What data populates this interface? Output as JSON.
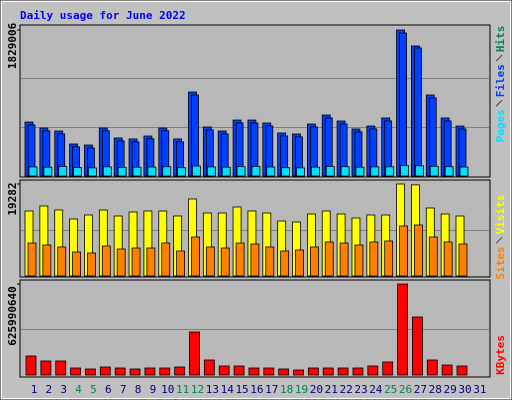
{
  "chart_data": [
    {
      "type": "bar",
      "title": "Daily usage for June 2022",
      "series": [
        {
          "name": "Hits",
          "color": "#00805c",
          "fill": "#0040ff",
          "values": [
            676000,
            601000,
            564000,
            401000,
            388000,
            601000,
            476000,
            464000,
            501000,
            601000,
            464000,
            1052000,
            614000,
            564000,
            701000,
            701000,
            664000,
            539000,
            526000,
            651000,
            764000,
            689000,
            589000,
            626000,
            727000,
            1829006,
            1629000,
            1015000,
            727000,
            626000,
            null
          ]
        },
        {
          "name": "Files",
          "color": "#0040ff",
          "values": [
            640000,
            566000,
            528000,
            366000,
            352000,
            566000,
            440000,
            428000,
            466000,
            566000,
            428000,
            1015000,
            578000,
            528000,
            665000,
            665000,
            628000,
            503000,
            490000,
            615000,
            728000,
            652000,
            552000,
            590000,
            690000,
            1791000,
            1604000,
            978000,
            690000,
            590000,
            null
          ]
        },
        {
          "name": "Pages",
          "color": "#00e0ff",
          "values": [
            113000,
            110000,
            118000,
            105000,
            102000,
            115000,
            108000,
            110000,
            112000,
            116000,
            104000,
            125000,
            114000,
            110000,
            117000,
            118000,
            112000,
            104000,
            102000,
            111000,
            118000,
            116000,
            110000,
            114000,
            115000,
            130000,
            128000,
            121000,
            116000,
            112000,
            null
          ]
        }
      ],
      "ylim": [
        0,
        1829006
      ],
      "yticks": [
        1829006
      ]
    },
    {
      "type": "bar",
      "series": [
        {
          "name": "Visits",
          "color": "#ffff00",
          "values": [
            13623,
            14671,
            13833,
            11946,
            12785,
            13833,
            12575,
            13414,
            13623,
            13623,
            12575,
            16138,
            13204,
            13204,
            14461,
            13623,
            13204,
            11527,
            11317,
            12994,
            13623,
            12994,
            12156,
            12785,
            12785,
            19282,
            19100,
            14252,
            12994,
            12575,
            null
          ]
        },
        {
          "name": "Sites",
          "color": "#ff8000",
          "values": [
            6916,
            6497,
            6078,
            5030,
            4820,
            6288,
            5659,
            5868,
            5868,
            6916,
            5240,
            8174,
            6078,
            5868,
            6916,
            6707,
            6078,
            5240,
            5449,
            6078,
            7126,
            6916,
            6497,
            7126,
            7335,
            10479,
            10689,
            8174,
            7126,
            6707,
            null
          ]
        }
      ],
      "ylim": [
        0,
        19282
      ],
      "yticks": [
        19282
      ]
    },
    {
      "type": "bar",
      "categories": [
        "1",
        "2",
        "3",
        "4",
        "5",
        "6",
        "7",
        "8",
        "9",
        "10",
        "11",
        "12",
        "13",
        "14",
        "15",
        "16",
        "17",
        "18",
        "19",
        "20",
        "21",
        "22",
        "23",
        "24",
        "25",
        "26",
        "27",
        "28",
        "29",
        "30",
        "31"
      ],
      "category_colors": [
        "#000080",
        "#000080",
        "#000080",
        "#00805c",
        "#00805c",
        "#000080",
        "#000080",
        "#000080",
        "#000080",
        "#000080",
        "#00805c",
        "#00805c",
        "#000080",
        "#000080",
        "#000080",
        "#000080",
        "#000080",
        "#00805c",
        "#00805c",
        "#000080",
        "#000080",
        "#000080",
        "#000080",
        "#000080",
        "#00805c",
        "#00805c",
        "#000080",
        "#000080",
        "#000080",
        "#000080",
        "#000080"
      ],
      "series": [
        {
          "name": "KBytes",
          "color": "#ff0000",
          "values": [
            130701000,
            96306000,
            96306000,
            48153000,
            41274000,
            55032000,
            48153000,
            41274000,
            48153000,
            48153000,
            55032000,
            295797000,
            103185000,
            61911000,
            61911000,
            48153000,
            48153000,
            41274000,
            34395000,
            48153000,
            48153000,
            48153000,
            48153000,
            61911000,
            89427000,
            625990640,
            398982000,
            103185000,
            68790000,
            61911000,
            null
          ]
        }
      ],
      "ylim": [
        0,
        625990640
      ],
      "yticks": [
        625990640
      ]
    }
  ]
}
